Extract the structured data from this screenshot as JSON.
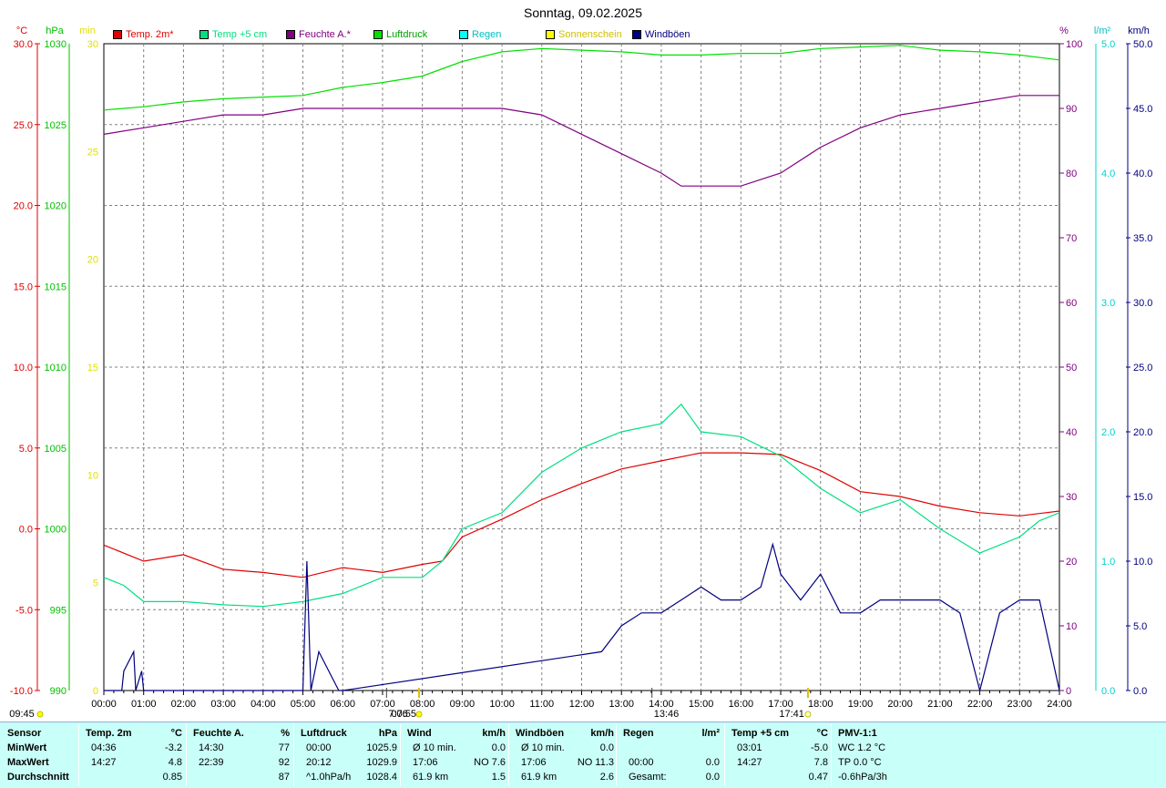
{
  "title": "Sonntag, 09.02.2025",
  "axis_units": {
    "temp": "°C",
    "pressure": "hPa",
    "sun": "min",
    "humidity": "%",
    "rain": "l/m²",
    "wind": "km/h"
  },
  "axis_ticks": {
    "temp": [
      "30.0",
      "25.0",
      "20.0",
      "15.0",
      "10.0",
      "5.0",
      "0.0",
      "-5.0",
      "-10.0"
    ],
    "pressure": [
      "1030",
      "1025",
      "1020",
      "1015",
      "1010",
      "1005",
      "1000",
      "995",
      "990"
    ],
    "sun": [
      "30",
      "25",
      "20",
      "15",
      "10",
      "5",
      "0"
    ],
    "humidity": [
      "100",
      "90",
      "80",
      "70",
      "60",
      "50",
      "40",
      "30",
      "20",
      "10",
      "0"
    ],
    "rain": [
      "5.0",
      "4.0",
      "3.0",
      "2.0",
      "1.0",
      "0.0"
    ],
    "wind": [
      "50.0",
      "45.0",
      "40.0",
      "35.0",
      "30.0",
      "25.0",
      "20.0",
      "15.0",
      "10.0",
      "5.0",
      "0.0"
    ],
    "time": [
      "00:00",
      "01:00",
      "02:00",
      "03:00",
      "04:00",
      "05:00",
      "06:00",
      "07:00",
      "08:00",
      "09:00",
      "10:00",
      "11:00",
      "12:00",
      "13:00",
      "14:00",
      "15:00",
      "16:00",
      "17:00",
      "18:00",
      "19:00",
      "20:00",
      "21:00",
      "22:00",
      "23:00",
      "24:00"
    ]
  },
  "legend": [
    {
      "label": "Temp. 2m*",
      "color": "#e00000"
    },
    {
      "label": "Temp +5 cm",
      "color": "#00e080"
    },
    {
      "label": "Feuchte A.*",
      "color": "#800080"
    },
    {
      "label": "Luftdruck",
      "color": "#00e000"
    },
    {
      "label": "Regen",
      "color": "#00ffff"
    },
    {
      "label": "Sonnenschein",
      "color": "#ffff00"
    },
    {
      "label": "Windböen",
      "color": "#000080"
    }
  ],
  "sun_markers": {
    "sunshine_start": "09:45",
    "dawn": "7:06",
    "sunrise": "07:55",
    "noon": "13:46",
    "sunset": "17:41"
  },
  "chart_data": {
    "type": "line",
    "title": "Sonntag, 09.02.2025",
    "xlabel": "",
    "x_unit": "hours",
    "xlim": [
      0,
      24
    ],
    "grid": true,
    "legend_position": "top",
    "series": [
      {
        "name": "Temp. 2m*",
        "axis": "°C",
        "ylim": [
          -10,
          30
        ],
        "color": "#e00000",
        "x": [
          0,
          1,
          2,
          3,
          4,
          5,
          6,
          7,
          8,
          8.5,
          9,
          10,
          11,
          12,
          13,
          14,
          15,
          16,
          17,
          18,
          19,
          20,
          21,
          22,
          23,
          24
        ],
        "y": [
          -1.0,
          -2.0,
          -1.6,
          -2.5,
          -2.7,
          -3.0,
          -2.4,
          -2.7,
          -2.2,
          -2.0,
          -0.5,
          0.6,
          1.8,
          2.8,
          3.7,
          4.2,
          4.7,
          4.7,
          4.6,
          3.6,
          2.3,
          2.0,
          1.4,
          1.0,
          0.8,
          1.1
        ]
      },
      {
        "name": "Temp +5 cm",
        "axis": "°C",
        "ylim": [
          -10,
          30
        ],
        "color": "#00e080",
        "x": [
          0,
          0.5,
          1,
          2,
          3,
          4,
          5,
          6,
          7,
          8,
          8.5,
          9,
          10,
          11,
          12,
          13,
          14,
          14.5,
          15,
          16,
          17,
          17.5,
          18,
          19,
          20,
          21,
          22,
          23,
          23.5,
          24
        ],
        "y": [
          -3.0,
          -3.5,
          -4.5,
          -4.5,
          -4.7,
          -4.8,
          -4.5,
          -4.0,
          -3.0,
          -3.0,
          -2.0,
          0.0,
          1.0,
          3.5,
          5.0,
          6.0,
          6.5,
          7.7,
          6.0,
          5.7,
          4.5,
          3.5,
          2.5,
          1.0,
          1.8,
          0.0,
          -1.5,
          -0.5,
          0.5,
          1.0
        ]
      },
      {
        "name": "Feuchte A.*",
        "axis": "%",
        "ylim": [
          0,
          100
        ],
        "color": "#800080",
        "x": [
          0,
          1,
          2,
          3,
          4,
          5,
          6,
          7,
          8,
          9,
          10,
          11,
          12,
          13,
          14,
          14.5,
          15,
          16,
          17,
          18,
          19,
          20,
          21,
          22,
          23,
          24
        ],
        "y": [
          86,
          87,
          88,
          89,
          89,
          90,
          90,
          90,
          90,
          90,
          90,
          89,
          86,
          83,
          80,
          78,
          78,
          78,
          80,
          84,
          87,
          89,
          90,
          91,
          92,
          92
        ]
      },
      {
        "name": "Luftdruck",
        "axis": "hPa",
        "ylim": [
          990,
          1030
        ],
        "color": "#00e000",
        "x": [
          0,
          1,
          2,
          3,
          4,
          5,
          6,
          7,
          8,
          9,
          10,
          11,
          12,
          13,
          14,
          15,
          16,
          17,
          18,
          19,
          20,
          21,
          22,
          23,
          24
        ],
        "y": [
          1025.9,
          1026.1,
          1026.4,
          1026.6,
          1026.7,
          1026.8,
          1027.3,
          1027.6,
          1028.0,
          1028.9,
          1029.5,
          1029.7,
          1029.6,
          1029.5,
          1029.3,
          1029.3,
          1029.4,
          1029.4,
          1029.7,
          1029.8,
          1029.9,
          1029.6,
          1029.5,
          1029.3,
          1029.0
        ]
      },
      {
        "name": "Windböen",
        "axis": "km/h",
        "ylim": [
          0,
          50
        ],
        "color": "#000080",
        "x": [
          0,
          0.45,
          0.5,
          0.75,
          0.8,
          0.95,
          1,
          5,
          5.1,
          5.2,
          5.4,
          5.9,
          6,
          12.5,
          13,
          13.5,
          14,
          14.5,
          15,
          15.5,
          16,
          16.5,
          16.8,
          17,
          17.5,
          18,
          18.5,
          19,
          19.5,
          20,
          21,
          21.5,
          22,
          22.5,
          23,
          23.5,
          24
        ],
        "y": [
          0,
          0,
          1.5,
          3,
          0,
          1.5,
          0,
          0,
          10,
          0,
          3,
          0,
          0,
          3,
          5,
          6,
          6,
          7,
          8,
          7,
          7,
          8,
          11.3,
          9,
          7,
          9,
          6,
          6,
          7,
          7,
          7,
          6,
          0,
          6,
          7,
          7,
          0
        ]
      }
    ]
  },
  "stats": {
    "columns": [
      {
        "header": "Sensor",
        "unit": "",
        "rows": [
          "MinWert",
          "MaxWert",
          "Durchschnitt"
        ]
      },
      {
        "header": "Temp. 2m",
        "unit": "°C",
        "rows": [
          [
            "04:36",
            "-3.2"
          ],
          [
            "14:27",
            "4.8"
          ],
          [
            "",
            "0.85"
          ]
        ]
      },
      {
        "header": "Feuchte A.",
        "unit": "%",
        "rows": [
          [
            "14:30",
            "77"
          ],
          [
            "22:39",
            "92"
          ],
          [
            "",
            "87"
          ]
        ]
      },
      {
        "header": "Luftdruck",
        "unit": "hPa",
        "rows": [
          [
            "00:00",
            "1025.9"
          ],
          [
            "20:12",
            "1029.9"
          ],
          [
            "^1.0hPa/h",
            "1028.4"
          ]
        ]
      },
      {
        "header": "Wind",
        "unit": "km/h",
        "rows": [
          [
            "Ø 10 min.",
            "0.0"
          ],
          [
            "17:06",
            "NO 7.6"
          ],
          [
            "61.9 km",
            "1.5"
          ]
        ]
      },
      {
        "header": "Windböen",
        "unit": "km/h",
        "rows": [
          [
            "Ø 10 min.",
            "0.0"
          ],
          [
            "17:06",
            "NO 11.3"
          ],
          [
            "61.9 km",
            "2.6"
          ]
        ]
      },
      {
        "header": "Regen",
        "unit": "l/m²",
        "rows": [
          [
            "",
            ""
          ],
          [
            "00:00",
            "0.0"
          ],
          [
            "Gesamt:",
            "0.0"
          ]
        ]
      },
      {
        "header": "Temp +5 cm",
        "unit": "°C",
        "rows": [
          [
            "03:01",
            "-5.0"
          ],
          [
            "14:27",
            "7.8"
          ],
          [
            "",
            "0.47"
          ]
        ]
      },
      {
        "header": "PMV-1:1",
        "unit": "",
        "rows": [
          "WC 1.2 °C",
          "TP 0.0 °C",
          "-0.6hPa/3h"
        ]
      }
    ]
  }
}
